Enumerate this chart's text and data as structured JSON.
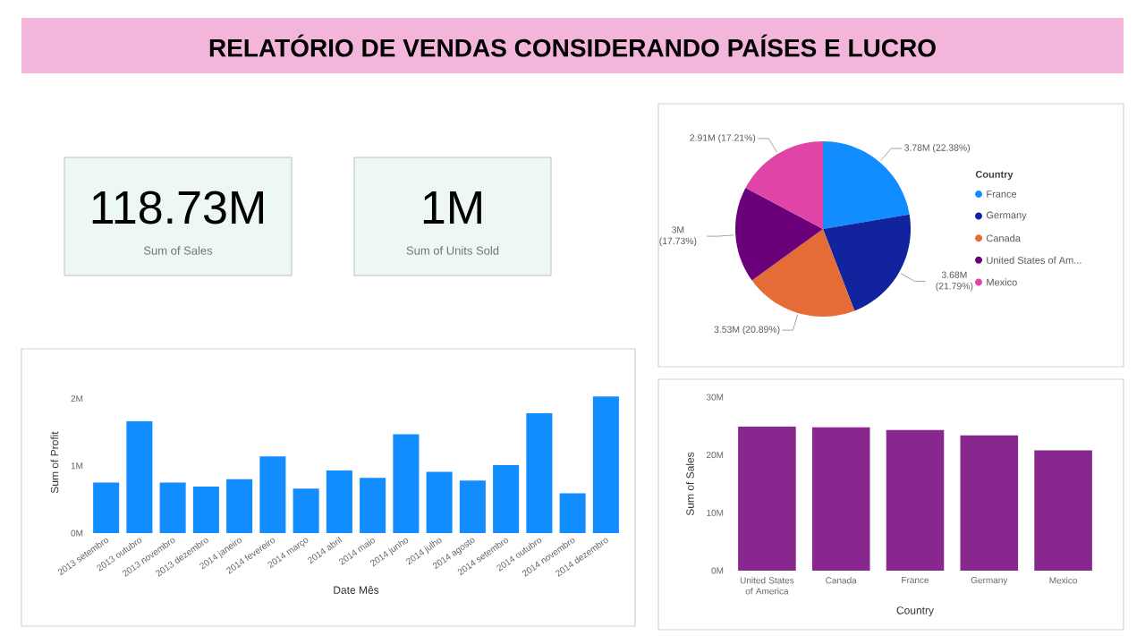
{
  "chart_data": [
    {
      "type": "other",
      "title": "RELATÓRIO DE VENDAS CONSIDERANDO PAÍSES E LUCRO",
      "annotations": [
        "118.73M",
        "Sum of  Sales",
        "1M",
        "Sum of Units Sold"
      ]
    },
    {
      "type": "pie",
      "categories": [
        "France",
        "Germany",
        "Canada",
        "United States of Am...",
        "Mexico"
      ],
      "values": [
        3780000,
        3680000,
        3530000,
        3000000,
        2910000
      ],
      "colors": [
        "#118dff",
        "#12239e",
        "#e66c37",
        "#6b007b",
        "#e044a7"
      ],
      "value_labels": [
        "3.78M (22.38%)",
        "3.68M (21.79%)",
        "3.53M (20.89%)",
        "3M (17.73%)",
        "2.91M (17.21%)"
      ],
      "legend_title": "Country",
      "legend": "right"
    },
    {
      "type": "bar",
      "categories": [
        "2013 setembro",
        "2013 outubro",
        "2013 novembro",
        "2013 dezembro",
        "2014 janeiro",
        "2014 fevereiro",
        "2014 março",
        "2014 abril",
        "2014 maio",
        "2014 junho",
        "2014 julho",
        "2014 agosto",
        "2014 setembro",
        "2014 outubro",
        "2014 novembro",
        "2014 dezembro"
      ],
      "values": [
        0.75,
        1.66,
        0.75,
        0.69,
        0.8,
        1.14,
        0.66,
        0.93,
        0.82,
        1.47,
        0.91,
        0.78,
        1.01,
        1.78,
        0.59,
        2.03
      ],
      "color": "#118dff",
      "xlabel": "Date Mês",
      "ylabel": "Sum of Profit",
      "ylim": [
        0,
        2.1
      ],
      "yticks": [
        {
          "value": 0,
          "label": "0M"
        },
        {
          "value": 1,
          "label": "1M"
        },
        {
          "value": 2,
          "label": "2M"
        }
      ]
    },
    {
      "type": "bar",
      "categories": [
        "United States of America",
        "Canada",
        "France",
        "Germany",
        "Mexico"
      ],
      "values": [
        24.9,
        24.8,
        24.3,
        23.4,
        20.8
      ],
      "color": "#88288f",
      "xlabel": "Country",
      "ylabel": "Sum of Sales",
      "ylim": [
        0,
        30
      ],
      "yticks": [
        {
          "value": 0,
          "label": "0M"
        },
        {
          "value": 10,
          "label": "10M"
        },
        {
          "value": 20,
          "label": "20M"
        },
        {
          "value": 30,
          "label": "30M"
        }
      ]
    }
  ]
}
